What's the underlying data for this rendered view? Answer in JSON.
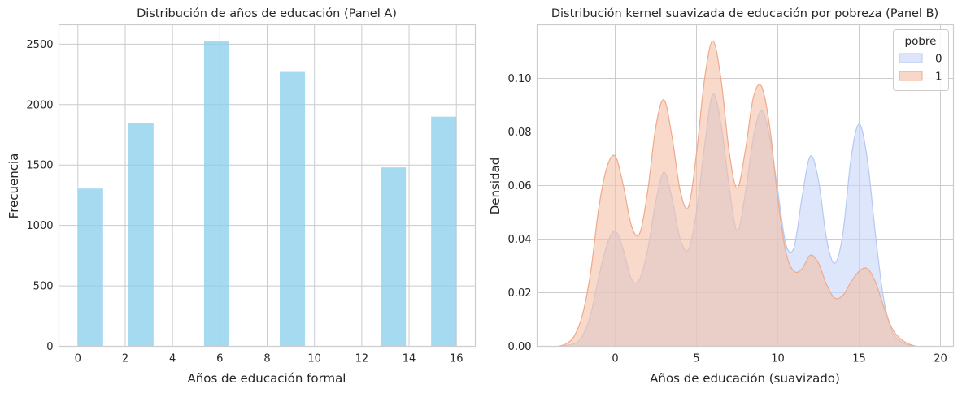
{
  "chart_data": [
    {
      "type": "bar",
      "title": "Distribución de años de educación (Panel A)",
      "xlabel": "Años de educación formal",
      "ylabel": "Frecuencia",
      "xlim": [
        -0.8,
        16.8
      ],
      "ylim": [
        0,
        2660
      ],
      "x_ticks": [
        0,
        2,
        4,
        6,
        8,
        10,
        12,
        14,
        16
      ],
      "y_ticks": [
        0,
        500,
        1000,
        1500,
        2000,
        2500
      ],
      "grid": true,
      "color": "#87CEEB",
      "bins": [
        {
          "x0": 0,
          "x1": 1.067,
          "value": 1305
        },
        {
          "x0": 2.133,
          "x1": 3.2,
          "value": 1850
        },
        {
          "x0": 5.333,
          "x1": 6.4,
          "value": 2525
        },
        {
          "x0": 8.533,
          "x1": 9.6,
          "value": 2270
        },
        {
          "x0": 12.8,
          "x1": 13.867,
          "value": 1480
        },
        {
          "x0": 14.933,
          "x1": 16.0,
          "value": 1900
        }
      ]
    },
    {
      "type": "area",
      "title": "Distribución kernel suavizada de educación por pobreza (Panel B)",
      "xlabel": "Años de educación (suavizado)",
      "ylabel": "Densidad",
      "xlim": [
        -4.8,
        20.8
      ],
      "ylim": [
        0,
        0.12
      ],
      "x_ticks": [
        0,
        5,
        10,
        15,
        20
      ],
      "y_ticks": [
        0.0,
        0.02,
        0.04,
        0.06,
        0.08,
        0.1
      ],
      "y_tick_labels": [
        "0.00",
        "0.02",
        "0.04",
        "0.06",
        "0.08",
        "0.10"
      ],
      "grid": true,
      "legend": {
        "title": "pobre",
        "placement": "top-right"
      },
      "series": [
        {
          "name": "0",
          "color": "#b5c9f2",
          "fill": "#dce5fa",
          "x": [
            -3.5,
            -2.5,
            -2,
            -1.5,
            -1,
            -0.5,
            0,
            0.5,
            1,
            1.5,
            2,
            2.5,
            3,
            3.5,
            4,
            4.5,
            5,
            5.5,
            6,
            6.5,
            7,
            7.5,
            8,
            8.5,
            9,
            9.5,
            10,
            10.5,
            11,
            11.5,
            12,
            12.5,
            13,
            13.5,
            14,
            14.5,
            15,
            15.5,
            16,
            16.5,
            17,
            17.5,
            18,
            18.5
          ],
          "y": [
            0,
            0.001,
            0.004,
            0.012,
            0.026,
            0.038,
            0.043,
            0.036,
            0.025,
            0.025,
            0.036,
            0.054,
            0.065,
            0.055,
            0.04,
            0.036,
            0.05,
            0.075,
            0.094,
            0.083,
            0.06,
            0.043,
            0.057,
            0.078,
            0.088,
            0.078,
            0.058,
            0.038,
            0.037,
            0.056,
            0.071,
            0.062,
            0.04,
            0.031,
            0.042,
            0.07,
            0.083,
            0.07,
            0.042,
            0.018,
            0.006,
            0.002,
            0.0005,
            0
          ]
        },
        {
          "name": "1",
          "color": "#f0a98a",
          "fill": "#f7d7c8",
          "x": [
            -3.5,
            -3,
            -2.5,
            -2,
            -1.5,
            -1,
            -0.5,
            0,
            0.5,
            1,
            1.5,
            2,
            2.5,
            3,
            3.5,
            4,
            4.5,
            5,
            5.5,
            6,
            6.5,
            7,
            7.5,
            8,
            8.5,
            9,
            9.5,
            10,
            10.5,
            11,
            11.5,
            12,
            12.5,
            13,
            13.5,
            14,
            14.5,
            15,
            15.5,
            16,
            16.5,
            17,
            17.5,
            18,
            18.5
          ],
          "y": [
            0,
            0.001,
            0.004,
            0.012,
            0.028,
            0.052,
            0.067,
            0.071,
            0.06,
            0.045,
            0.042,
            0.058,
            0.082,
            0.092,
            0.078,
            0.058,
            0.052,
            0.072,
            0.1,
            0.114,
            0.1,
            0.073,
            0.059,
            0.073,
            0.093,
            0.097,
            0.082,
            0.055,
            0.035,
            0.028,
            0.029,
            0.034,
            0.031,
            0.023,
            0.018,
            0.019,
            0.024,
            0.028,
            0.029,
            0.024,
            0.015,
            0.007,
            0.003,
            0.001,
            0
          ]
        }
      ]
    }
  ]
}
